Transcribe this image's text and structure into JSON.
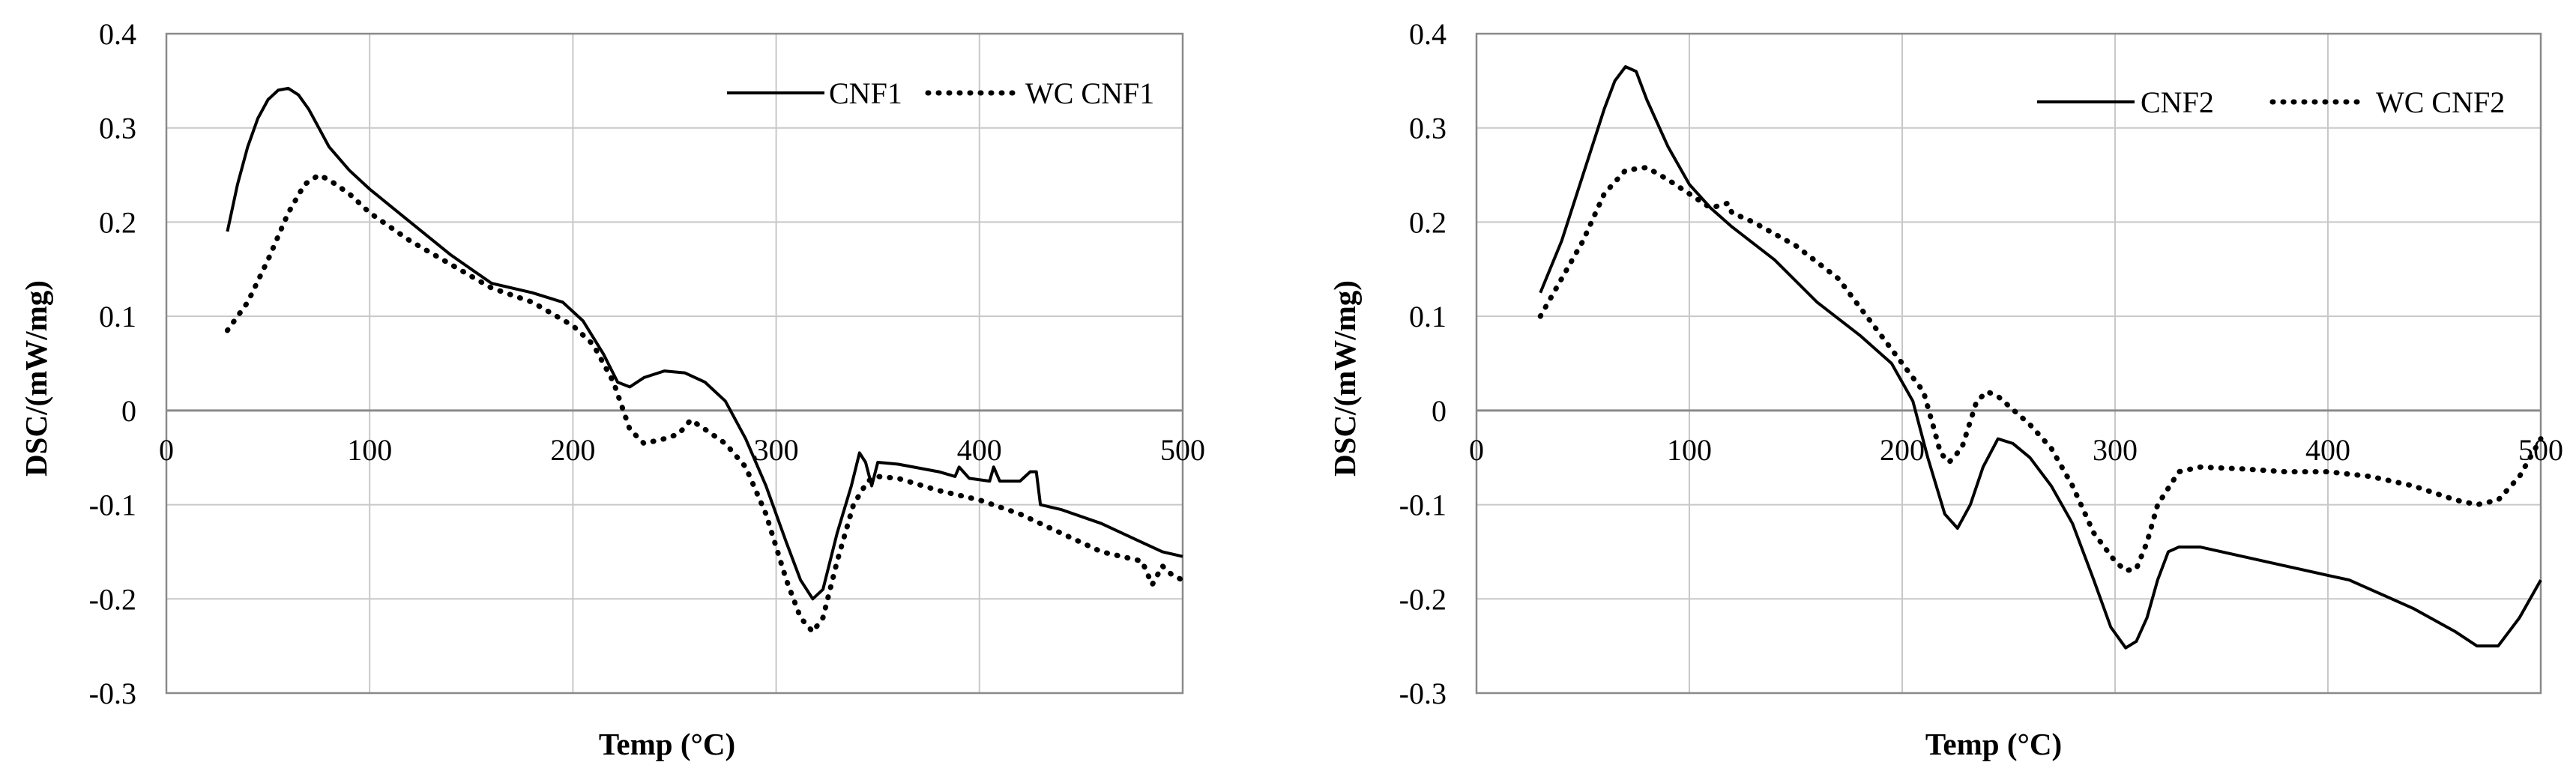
{
  "chart_data": [
    {
      "type": "line",
      "title": "",
      "xlabel": "Temp (°C)",
      "ylabel": "DSC/(mW/mg)",
      "xlim": [
        0,
        500
      ],
      "ylim": [
        -0.3,
        0.4
      ],
      "x_ticks": [
        0,
        100,
        200,
        300,
        400,
        500
      ],
      "y_ticks": [
        -0.3,
        -0.2,
        -0.1,
        0,
        0.1,
        0.2,
        0.3,
        0.4
      ],
      "x_tick_labels": [
        "0",
        "100",
        "200",
        "300",
        "400",
        "500"
      ],
      "y_tick_labels": [
        "-0.3",
        "-0.2",
        "-0.1",
        "0",
        "0.1",
        "0.2",
        "0.3",
        "0.4"
      ],
      "grid": true,
      "legend_position": "top-right",
      "series": [
        {
          "name": "CNF1",
          "style": "solid",
          "x": [
            30,
            35,
            40,
            45,
            50,
            55,
            60,
            65,
            70,
            75,
            80,
            90,
            100,
            120,
            140,
            160,
            180,
            195,
            205,
            215,
            222,
            228,
            235,
            245,
            255,
            265,
            275,
            285,
            295,
            305,
            312,
            318,
            323,
            330,
            337,
            341,
            344,
            347,
            350,
            360,
            380,
            388,
            390,
            395,
            405,
            407,
            410,
            420,
            425,
            428,
            430,
            440,
            460,
            480,
            490,
            500
          ],
          "y": [
            0.19,
            0.24,
            0.28,
            0.31,
            0.33,
            0.34,
            0.342,
            0.335,
            0.32,
            0.3,
            0.28,
            0.255,
            0.235,
            0.2,
            0.165,
            0.135,
            0.125,
            0.115,
            0.095,
            0.06,
            0.03,
            0.025,
            0.035,
            0.042,
            0.04,
            0.03,
            0.01,
            -0.03,
            -0.08,
            -0.14,
            -0.18,
            -0.2,
            -0.19,
            -0.13,
            -0.08,
            -0.045,
            -0.055,
            -0.08,
            -0.055,
            -0.057,
            -0.065,
            -0.07,
            -0.06,
            -0.072,
            -0.075,
            -0.06,
            -0.075,
            -0.075,
            -0.065,
            -0.065,
            -0.1,
            -0.105,
            -0.12,
            -0.14,
            -0.15,
            -0.155
          ]
        },
        {
          "name": "WC CNF1",
          "style": "dotted",
          "x": [
            30,
            40,
            50,
            60,
            68,
            75,
            80,
            90,
            100,
            120,
            140,
            160,
            180,
            200,
            210,
            220,
            228,
            235,
            245,
            252,
            258,
            265,
            275,
            285,
            295,
            305,
            312,
            318,
            323,
            330,
            338,
            345,
            350,
            360,
            380,
            400,
            420,
            440,
            460,
            480,
            485,
            490,
            495,
            500
          ],
          "y": [
            0.085,
            0.115,
            0.16,
            0.21,
            0.24,
            0.25,
            0.245,
            0.23,
            0.21,
            0.18,
            0.155,
            0.13,
            0.115,
            0.09,
            0.07,
            0.03,
            -0.02,
            -0.035,
            -0.03,
            -0.025,
            -0.01,
            -0.02,
            -0.035,
            -0.06,
            -0.11,
            -0.18,
            -0.22,
            -0.235,
            -0.22,
            -0.16,
            -0.1,
            -0.075,
            -0.07,
            -0.072,
            -0.085,
            -0.095,
            -0.11,
            -0.13,
            -0.15,
            -0.16,
            -0.185,
            -0.165,
            -0.175,
            -0.18
          ]
        }
      ]
    },
    {
      "type": "line",
      "title": "",
      "xlabel": "Temp (°C)",
      "ylabel": "DSC/(mW/mg)",
      "xlim": [
        0,
        500
      ],
      "ylim": [
        -0.3,
        0.4
      ],
      "x_ticks": [
        0,
        100,
        200,
        300,
        400,
        500
      ],
      "y_ticks": [
        -0.3,
        -0.2,
        -0.1,
        0,
        0.1,
        0.2,
        0.3,
        0.4
      ],
      "x_tick_labels": [
        "0",
        "100",
        "200",
        "300",
        "400",
        "500"
      ],
      "y_tick_labels": [
        "-0.3",
        "-0.2",
        "-0.1",
        "0",
        "0.1",
        "0.2",
        "0.3",
        "0.4"
      ],
      "grid": true,
      "legend_position": "top-right",
      "series": [
        {
          "name": "CNF2",
          "style": "solid",
          "x": [
            30,
            40,
            50,
            60,
            65,
            70,
            75,
            80,
            90,
            100,
            110,
            120,
            140,
            160,
            180,
            195,
            205,
            212,
            220,
            226,
            232,
            238,
            245,
            252,
            260,
            270,
            280,
            290,
            298,
            305,
            310,
            315,
            320,
            325,
            330,
            340,
            360,
            380,
            400,
            410,
            420,
            440,
            460,
            470,
            480,
            490,
            500
          ],
          "y": [
            0.125,
            0.18,
            0.25,
            0.32,
            0.35,
            0.365,
            0.36,
            0.33,
            0.28,
            0.24,
            0.215,
            0.195,
            0.16,
            0.115,
            0.08,
            0.05,
            0.01,
            -0.05,
            -0.11,
            -0.125,
            -0.1,
            -0.06,
            -0.03,
            -0.035,
            -0.05,
            -0.08,
            -0.12,
            -0.18,
            -0.23,
            -0.252,
            -0.245,
            -0.22,
            -0.18,
            -0.15,
            -0.145,
            -0.145,
            -0.155,
            -0.165,
            -0.175,
            -0.18,
            -0.19,
            -0.21,
            -0.235,
            -0.25,
            -0.25,
            -0.22,
            -0.18
          ]
        },
        {
          "name": "WC CNF2",
          "style": "dotted",
          "x": [
            30,
            40,
            50,
            60,
            70,
            80,
            90,
            100,
            110,
            118,
            120,
            130,
            150,
            170,
            190,
            200,
            210,
            215,
            218,
            222,
            228,
            235,
            240,
            245,
            250,
            260,
            270,
            280,
            290,
            300,
            305,
            310,
            315,
            320,
            330,
            340,
            360,
            380,
            400,
            420,
            440,
            460,
            470,
            480,
            490,
            500
          ],
          "y": [
            0.1,
            0.14,
            0.18,
            0.23,
            0.255,
            0.258,
            0.245,
            0.23,
            0.215,
            0.22,
            0.21,
            0.2,
            0.175,
            0.14,
            0.08,
            0.05,
            0.02,
            -0.02,
            -0.045,
            -0.055,
            -0.04,
            0.01,
            0.02,
            0.015,
            0.005,
            -0.015,
            -0.04,
            -0.08,
            -0.13,
            -0.16,
            -0.17,
            -0.168,
            -0.14,
            -0.1,
            -0.065,
            -0.06,
            -0.062,
            -0.065,
            -0.065,
            -0.07,
            -0.08,
            -0.095,
            -0.1,
            -0.095,
            -0.07,
            -0.03
          ]
        }
      ]
    }
  ]
}
